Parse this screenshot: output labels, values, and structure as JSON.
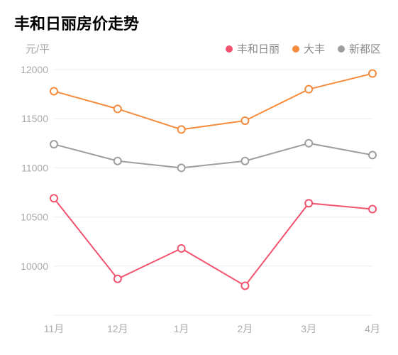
{
  "title": "丰和日丽房价走势",
  "chart": {
    "type": "line",
    "ylabel": "元/平",
    "categories": [
      "11月",
      "12月",
      "1月",
      "2月",
      "3月",
      "4月"
    ],
    "ylim": [
      9500,
      12000
    ],
    "yticks": [
      9500,
      10000,
      10500,
      11000,
      11500,
      12000
    ],
    "grid_color": "#ececec",
    "background_color": "#ffffff",
    "axis_label_color": "#aaaaaa",
    "axis_label_fontsize": 14,
    "title_fontsize": 22,
    "title_color": "#000000",
    "line_width": 2,
    "marker_radius": 5,
    "marker_fill": "#ffffff",
    "series": [
      {
        "name": "丰和日丽",
        "color": "#f2536e",
        "values": [
          10690,
          9870,
          10180,
          9800,
          10640,
          10580
        ]
      },
      {
        "name": "大丰",
        "color": "#f58b3c",
        "values": [
          11780,
          11600,
          11390,
          11480,
          11800,
          11960
        ]
      },
      {
        "name": "新都区",
        "color": "#9e9e9e",
        "values": [
          11240,
          11070,
          11000,
          11070,
          11250,
          11130
        ]
      }
    ],
    "legend_text_color": "#888888",
    "legend_fontsize": 15
  }
}
